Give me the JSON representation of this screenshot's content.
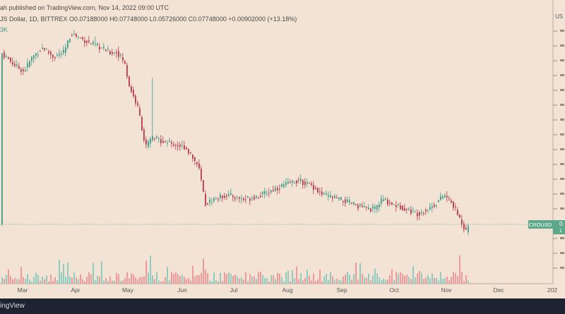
{
  "header": {
    "publish_line": "ah published on TradingView.com, Nov 14, 2022 09:00 UTC",
    "symbol_line": "JS Dollar, 1D, BITTREX  O0.07188000  H0.07748000  L0.05726000  C0.07748000  +0.00902000 (+13.18%)",
    "volume_line": "3K"
  },
  "footer": {
    "brand_text": "ingView"
  },
  "price_tag": {
    "symbol": "CROUSD",
    "value": "0.",
    "sub": "1"
  },
  "right_axis": {
    "top_label": "US"
  },
  "colors": {
    "background": "#f2e3d5",
    "up": "#3f9c8a",
    "down": "#b8384a",
    "up_volume": "#8fcbbf",
    "down_volume": "#ef9a9a",
    "axis_tag": "#5ca888"
  },
  "chart_data": {
    "type": "candlestick",
    "x_axis_labels": [
      "Mar",
      "Apr",
      "May",
      "Jun",
      "Jul",
      "Aug",
      "Sep",
      "Oct",
      "Nov",
      "Dec",
      "202"
    ],
    "last_candle": {
      "open": 0.07188,
      "high": 0.07748,
      "low": 0.05726,
      "close": 0.07748,
      "change": 0.00902,
      "change_pct": 13.18
    },
    "close_series": [
      {
        "x": "Mar 1",
        "y": 0.44
      },
      {
        "x": "Mar 20",
        "y": 0.41
      },
      {
        "x": "Mar 31",
        "y": 0.48
      },
      {
        "x": "Apr 10",
        "y": 0.46
      },
      {
        "x": "Apr 25",
        "y": 0.42
      },
      {
        "x": "May 5",
        "y": 0.35
      },
      {
        "x": "May 12",
        "y": 0.24
      },
      {
        "x": "May 20",
        "y": 0.26
      },
      {
        "x": "Jun 5",
        "y": 0.25
      },
      {
        "x": "Jun 18",
        "y": 0.12
      },
      {
        "x": "Jul 10",
        "y": 0.13
      },
      {
        "x": "Aug 10",
        "y": 0.16
      },
      {
        "x": "Aug 25",
        "y": 0.13
      },
      {
        "x": "Sep 15",
        "y": 0.11
      },
      {
        "x": "Oct 5",
        "y": 0.12
      },
      {
        "x": "Oct 25",
        "y": 0.1
      },
      {
        "x": "Nov 5",
        "y": 0.13
      },
      {
        "x": "Nov 10",
        "y": 0.06
      },
      {
        "x": "Nov 14",
        "y": 0.077
      }
    ],
    "legend": "none",
    "grid": true
  }
}
